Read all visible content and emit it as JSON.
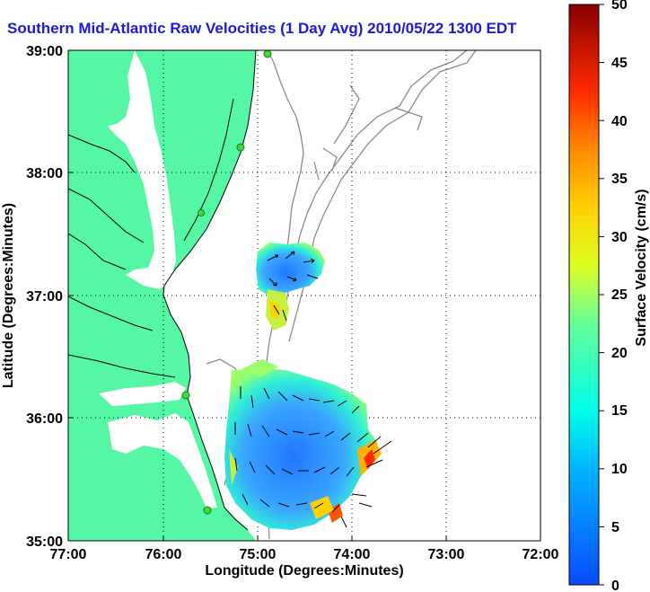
{
  "title": "Southern Mid-Atlantic Raw Velocities (1 Day Avg) 2010/05/22 1300 EDT",
  "map": {
    "xlabel": "Longitude (Degrees:Minutes)",
    "ylabel": "Latitude (Degrees:Minutes)",
    "x_ticks": [
      "77:00",
      "76:00",
      "75:00",
      "74:00",
      "73:00",
      "72:00"
    ],
    "y_ticks": [
      "39:00",
      "38:00",
      "37:00",
      "36:00",
      "35:00"
    ],
    "grid": true,
    "colors": {
      "land": "#55f6a4",
      "ocean": "#ffffff",
      "contour": "#8a8a8a",
      "station": "#3cdc3c"
    }
  },
  "colorbar": {
    "label": "Surface Velocity (cm/s)",
    "ticks": [
      "0",
      "5",
      "10",
      "15",
      "20",
      "25",
      "30",
      "35",
      "40",
      "45",
      "50"
    ],
    "min": 0,
    "max": 50
  }
}
